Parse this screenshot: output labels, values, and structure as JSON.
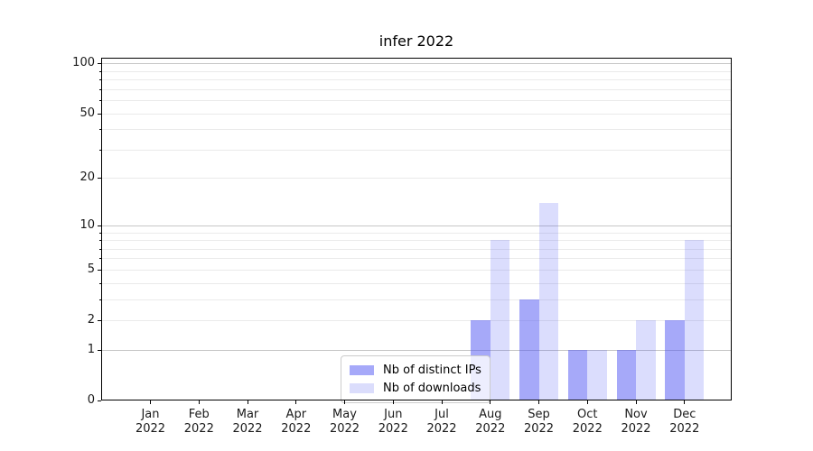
{
  "chart_data": {
    "type": "bar",
    "title": "infer 2022",
    "categories": [
      "Jan",
      "Feb",
      "Mar",
      "Apr",
      "May",
      "Jun",
      "Jul",
      "Aug",
      "Sep",
      "Oct",
      "Nov",
      "Dec"
    ],
    "category_year": "2022",
    "series": [
      {
        "name": "Nb of distinct IPs",
        "values": [
          0,
          0,
          0,
          0,
          0,
          0,
          0,
          2,
          3,
          1,
          1,
          2
        ],
        "fill_color": "rgba(77,83,243,0.5)",
        "swatch_color": "#a6a9f9"
      },
      {
        "name": "Nb of downloads",
        "values": [
          0,
          0,
          0,
          0,
          0,
          0,
          0,
          8,
          14,
          1,
          2,
          8
        ],
        "fill_color": "rgba(77,83,243,0.2)",
        "swatch_color": "#dbddfc"
      }
    ],
    "yscale": "log1p",
    "ylim": [
      0,
      108
    ],
    "ytick_values": [
      0,
      1,
      2,
      5,
      10,
      20,
      50,
      100
    ],
    "grid": {
      "major_values": [
        1,
        10,
        100
      ],
      "minor_values": [
        2,
        3,
        4,
        5,
        6,
        7,
        8,
        9,
        20,
        30,
        40,
        50,
        60,
        70,
        80,
        90
      ],
      "major_color": "#c6c6c6",
      "minor_color": "#eaeaea"
    },
    "legend_position": "lower center",
    "xlabel": "",
    "ylabel": ""
  }
}
